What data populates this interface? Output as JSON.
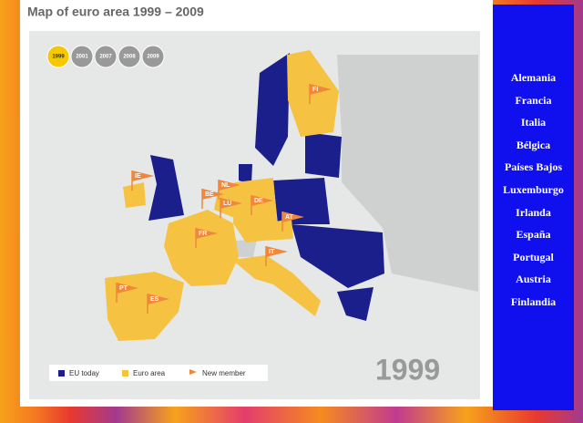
{
  "header": {
    "title": "Map of euro area 1999 – 2009"
  },
  "years": [
    "1999",
    "2001",
    "2007",
    "2008",
    "2009"
  ],
  "flags": [
    "FI",
    "IE",
    "NL",
    "BE",
    "LU",
    "DE",
    "FR",
    "AT",
    "IT",
    "PT",
    "ES"
  ],
  "legend": [
    "EU today",
    "Euro area",
    "New member"
  ],
  "big_year": "1999",
  "sidebar": [
    "Alemania",
    "Francia",
    "Italia",
    "Bélgica",
    "Países Bajos",
    "Luxemburgo",
    "Irlanda",
    "España",
    "Portugal",
    "Austria",
    "Finlandia"
  ]
}
